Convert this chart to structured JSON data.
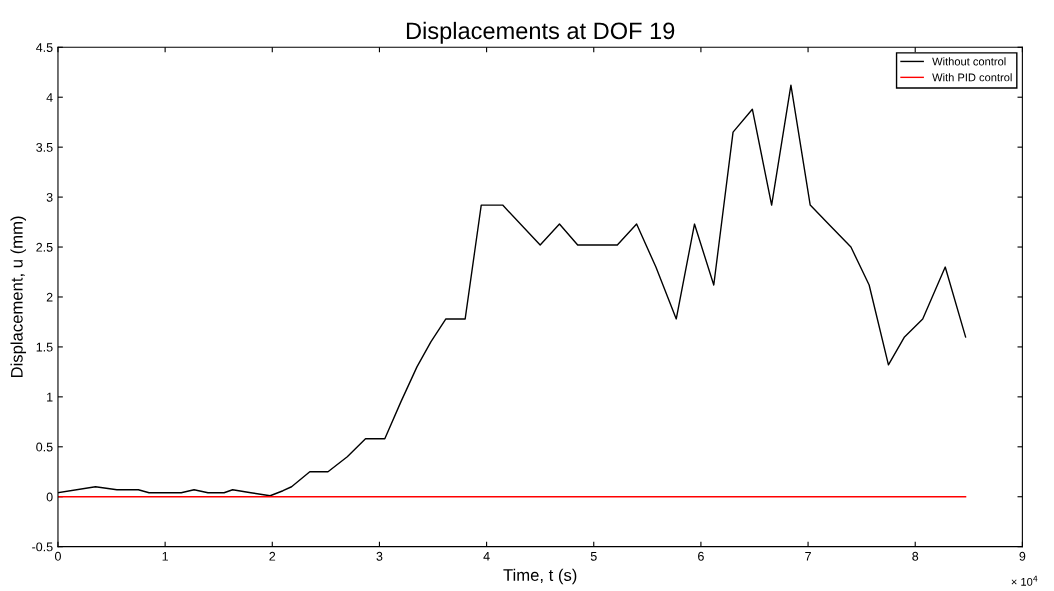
{
  "chart_data": {
    "type": "line",
    "title": "Displacements at DOF 19",
    "xlabel": "Time, t (s)",
    "ylabel": "Displacement, u (mm)",
    "annotations": [
      "× 10$^{4}$"
    ],
    "series": [
      {
        "name": "Without control",
        "color": "#000000",
        "x": [
          0,
          0.35,
          0.55,
          0.75,
          0.85,
          1.15,
          1.27,
          1.4,
          1.55,
          1.63,
          1.8,
          1.98,
          2.1,
          2.18,
          2.35,
          2.52,
          2.7,
          2.87,
          3.05,
          3.2,
          3.35,
          3.48,
          3.62,
          3.8,
          3.95,
          4.15,
          4.5,
          4.68,
          4.85,
          5.22,
          5.4,
          5.58,
          5.77,
          5.94,
          6.12,
          6.3,
          6.48,
          6.66,
          6.84,
          7.02,
          7.2,
          7.4,
          7.57,
          7.75,
          7.9,
          8.07,
          8.28,
          8.47
        ],
        "values": [
          0.04,
          0.1,
          0.07,
          0.07,
          0.04,
          0.04,
          0.07,
          0.04,
          0.04,
          0.07,
          0.04,
          0.01,
          0.06,
          0.1,
          0.25,
          0.25,
          0.4,
          0.58,
          0.58,
          0.95,
          1.3,
          1.55,
          1.78,
          1.78,
          2.92,
          2.92,
          2.52,
          2.73,
          2.52,
          2.52,
          2.73,
          2.3,
          1.78,
          2.73,
          2.12,
          3.65,
          3.88,
          2.92,
          4.12,
          2.92,
          2.72,
          2.5,
          2.12,
          1.32,
          1.6,
          1.78,
          2.3,
          1.6
        ]
      },
      {
        "name": "With PID control",
        "color": "#ff0000",
        "x": [
          0,
          8.47
        ],
        "values": [
          0,
          0
        ]
      }
    ],
    "xlim": [
      0,
      9
    ],
    "xticks": [
      0,
      1,
      2,
      3,
      4,
      5,
      6,
      7,
      8,
      9
    ],
    "ylim": [
      -0.5,
      4.5
    ],
    "yticks": [
      -0.5,
      0,
      0.5,
      1,
      1.5,
      2,
      2.5,
      3,
      3.5,
      4,
      4.5
    ],
    "grid": false,
    "legend": "top right",
    "line_style": "solid",
    "marker": "none"
  }
}
